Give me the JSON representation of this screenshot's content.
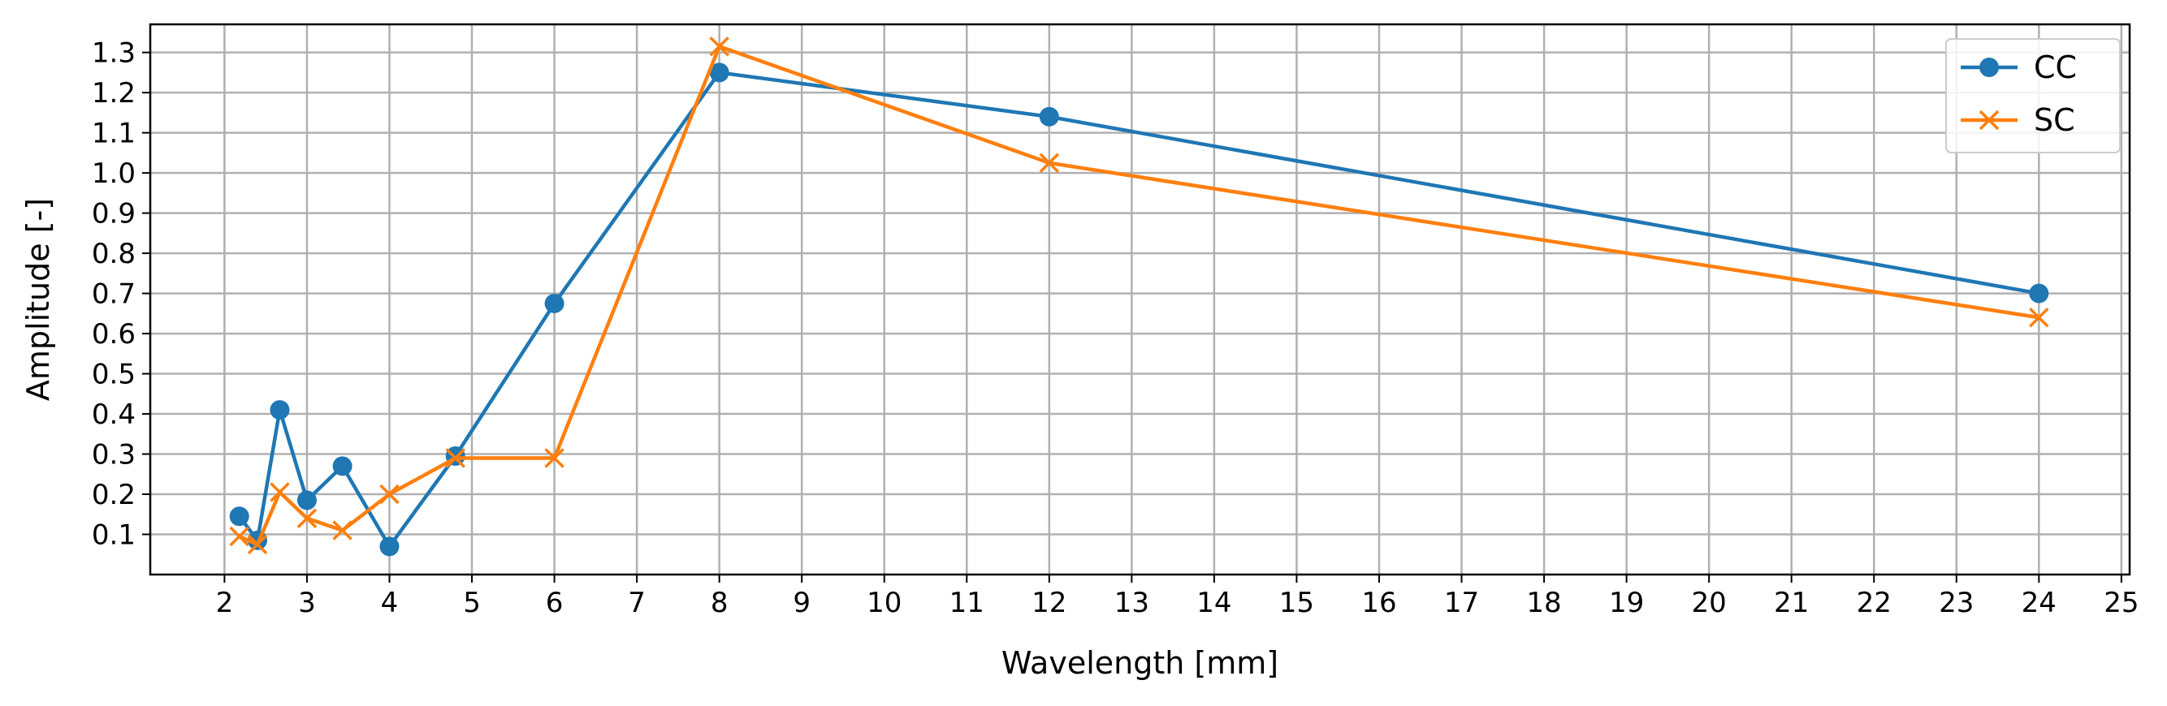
{
  "chart_data": {
    "type": "line",
    "xlabel": "Wavelength [mm]",
    "ylabel": "Amplitude [-]",
    "xlim": [
      1.1,
      25.1
    ],
    "ylim": [
      0.0,
      1.37
    ],
    "xticks": [
      2,
      3,
      4,
      5,
      6,
      7,
      8,
      9,
      10,
      11,
      12,
      13,
      14,
      15,
      16,
      17,
      18,
      19,
      20,
      21,
      22,
      23,
      24,
      25
    ],
    "yticks": [
      0.1,
      0.2,
      0.3,
      0.4,
      0.5,
      0.6,
      0.7,
      0.8,
      0.9,
      1.0,
      1.1,
      1.2,
      1.3
    ],
    "grid": true,
    "legend_position": "top-right",
    "series": [
      {
        "name": "CC",
        "color": "#1f77b4",
        "marker": "circle",
        "x": [
          2.18,
          2.4,
          2.67,
          3.0,
          3.43,
          4.0,
          4.8,
          6.0,
          8.0,
          12.0,
          24.0
        ],
        "y": [
          0.145,
          0.085,
          0.41,
          0.185,
          0.27,
          0.07,
          0.295,
          0.675,
          1.25,
          1.14,
          0.7
        ]
      },
      {
        "name": "SC",
        "color": "#ff7f0e",
        "marker": "x",
        "x": [
          2.18,
          2.4,
          2.67,
          3.0,
          3.43,
          4.0,
          4.8,
          6.0,
          8.0,
          12.0,
          24.0
        ],
        "y": [
          0.095,
          0.075,
          0.205,
          0.14,
          0.11,
          0.2,
          0.29,
          0.29,
          1.315,
          1.025,
          0.64
        ]
      }
    ]
  }
}
